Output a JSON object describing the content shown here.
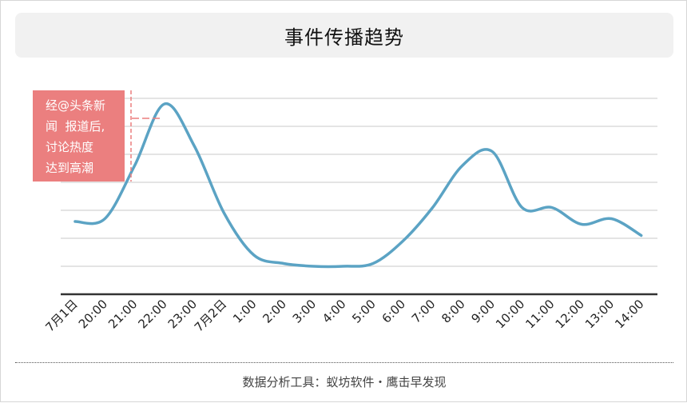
{
  "chart_data": {
    "type": "line",
    "title": "事件传播趋势",
    "categories": [
      "7月1日",
      "20:00",
      "21:00",
      "22:00",
      "23:00",
      "7月2日",
      "1:00",
      "2:00",
      "3:00",
      "4:00",
      "5:00",
      "6:00",
      "7:00",
      "8:00",
      "9:00",
      "10:00",
      "11:00",
      "12:00",
      "13:00",
      "14:00"
    ],
    "series": [
      {
        "values": [
          1.9,
          2.0,
          3.9,
          6.1,
          4.6,
          2.2,
          0.7,
          0.4,
          0.3,
          0.3,
          0.4,
          1.2,
          2.4,
          3.9,
          4.4,
          2.4,
          2.4,
          1.8,
          2.0,
          1.4
        ]
      }
    ],
    "ylim": [
      -0.7,
      6.3
    ],
    "grid": true,
    "line_color": "#5ba3c4",
    "annotation": {
      "text": "经@头条新\n闻  报道后,\n讨论热度\n达到高潮",
      "color": "#eb7f7f"
    }
  },
  "source": "数据分析工具：蚁坊软件・鹰击早发现"
}
